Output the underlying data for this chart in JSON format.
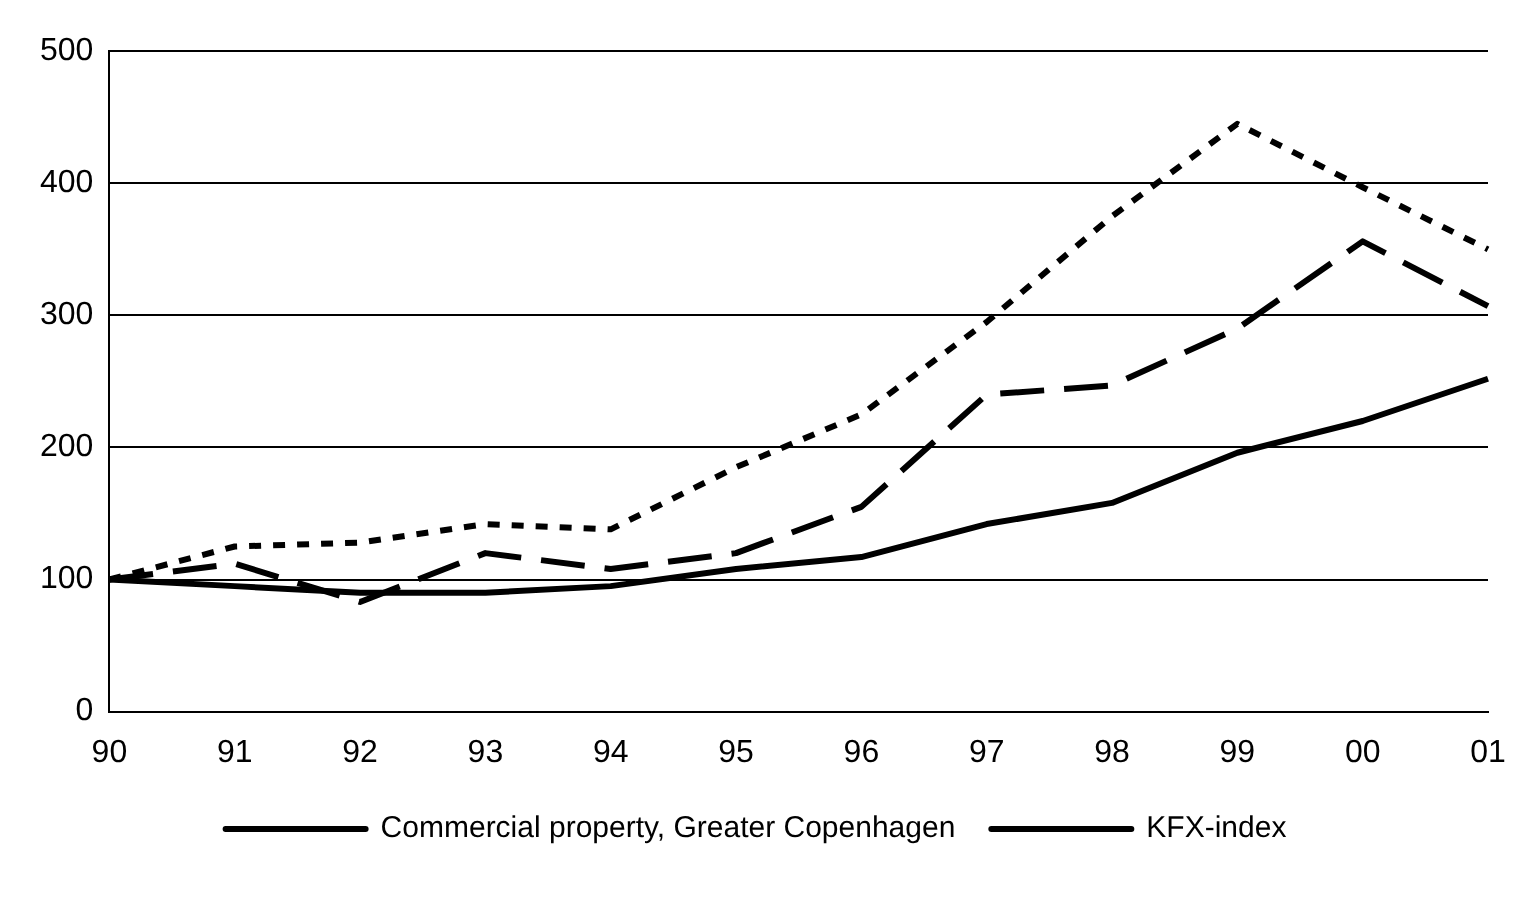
{
  "chart_data": {
    "type": "line",
    "categories": [
      "90",
      "91",
      "92",
      "93",
      "94",
      "95",
      "96",
      "97",
      "98",
      "99",
      "00",
      "01"
    ],
    "series": [
      {
        "name": "Commercial property, Greater Copenhagen",
        "color": "#000000",
        "line_style": "solid",
        "values": [
          100,
          95,
          90,
          90,
          95,
          108,
          117,
          142,
          158,
          196,
          220,
          252
        ]
      },
      {
        "name": "KFX-index",
        "color": "#000000",
        "line_style": "dashed",
        "values": [
          100,
          112,
          83,
          120,
          108,
          120,
          155,
          240,
          247,
          290,
          356,
          307
        ]
      },
      {
        "color": "#000000",
        "line_style": "dotted",
        "values": [
          100,
          125,
          128,
          142,
          138,
          185,
          225,
          295,
          375,
          445,
          397,
          350
        ]
      }
    ],
    "ylim": [
      0,
      500
    ],
    "yticks": [
      0,
      100,
      200,
      300,
      400,
      500
    ],
    "grid": "y",
    "legend": "bottom",
    "marker": "none"
  }
}
